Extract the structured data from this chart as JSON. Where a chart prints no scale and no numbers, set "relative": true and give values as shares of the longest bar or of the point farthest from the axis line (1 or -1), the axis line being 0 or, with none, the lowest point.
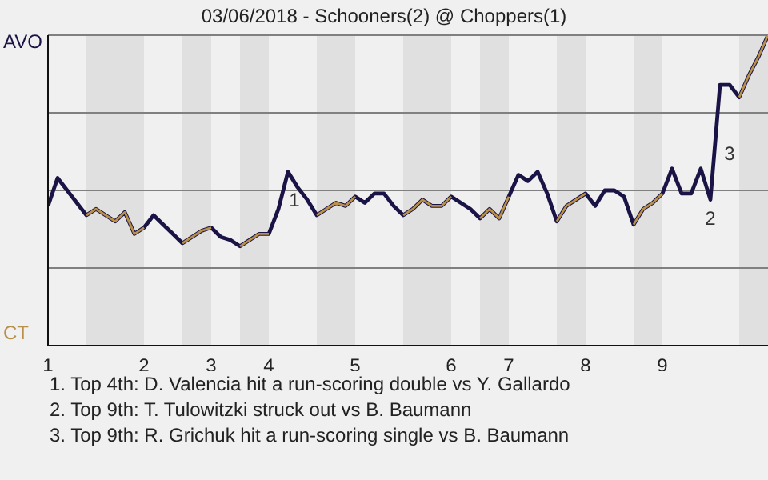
{
  "chart_data": {
    "type": "line",
    "title": "03/06/2018 - Schooners(2) @ Choppers(1)",
    "categories": [
      "1",
      null,
      null,
      null,
      null,
      null,
      null,
      null,
      null,
      null,
      "2",
      null,
      null,
      null,
      null,
      null,
      null,
      "3",
      null,
      null,
      null,
      null,
      null,
      "4",
      null,
      null,
      null,
      null,
      null,
      null,
      null,
      null,
      "5",
      null,
      null,
      null,
      null,
      null,
      null,
      null,
      null,
      null,
      "6",
      null,
      null,
      null,
      null,
      null,
      "7",
      null,
      null,
      null,
      null,
      null,
      null,
      null,
      "8",
      null,
      null,
      null,
      null,
      null,
      null,
      null,
      "9",
      null,
      null,
      null,
      null,
      null,
      null,
      null,
      null,
      null,
      null,
      null
    ],
    "series": [
      {
        "color": "#1a1446",
        "values": [
          0.45,
          0.54,
          0.5,
          0.46,
          0.42,
          0.44,
          0.42,
          0.4,
          0.43,
          0.36,
          0.38,
          0.42,
          0.39,
          0.36,
          0.33,
          0.35,
          0.37,
          0.38,
          0.35,
          0.34,
          0.32,
          0.34,
          0.36,
          0.36,
          0.44,
          0.56,
          0.51,
          0.47,
          0.42,
          0.44,
          0.46,
          0.45,
          0.48,
          0.46,
          0.49,
          0.49,
          0.45,
          0.42,
          0.44,
          0.47,
          0.45,
          0.45,
          0.48,
          0.46,
          0.44,
          0.41,
          0.44,
          0.41,
          0.48,
          0.55,
          0.53,
          0.56,
          0.49,
          0.4,
          0.45,
          0.47,
          0.49,
          0.45,
          0.5,
          0.5,
          0.48,
          0.39,
          0.44,
          0.46,
          0.49,
          0.57,
          0.49,
          0.49,
          0.57,
          0.47,
          0.84,
          0.84,
          0.8,
          0.87,
          0.93,
          1.0
        ]
      },
      {
        "color": "#b8904a",
        "values": [
          null,
          null,
          null,
          null,
          0.42,
          0.44,
          0.42,
          0.4,
          0.43,
          0.36,
          0.38,
          null,
          null,
          null,
          0.33,
          0.35,
          0.37,
          0.38,
          null,
          null,
          0.32,
          0.34,
          0.36,
          0.36,
          null,
          null,
          null,
          null,
          0.42,
          0.44,
          0.46,
          0.45,
          0.48,
          null,
          null,
          null,
          null,
          0.42,
          0.44,
          0.47,
          0.45,
          0.45,
          0.48,
          null,
          null,
          0.41,
          0.44,
          0.41,
          0.48,
          null,
          null,
          null,
          null,
          0.4,
          0.45,
          0.47,
          0.49,
          null,
          null,
          null,
          null,
          0.39,
          0.44,
          0.46,
          0.49,
          null,
          null,
          null,
          null,
          null,
          null,
          null,
          0.8,
          0.87,
          0.93,
          1.0
        ]
      }
    ],
    "relative": true,
    "marker": "none",
    "line_style": "solid",
    "annotations": [
      "AVO",
      "CT",
      "1",
      "2",
      "3",
      "1. Top 4th: D. Valencia hit a run-scoring double vs Y. Gallardo",
      "2. Top 9th: T. Tulowitzki struck out vs B. Baumann",
      "3. Top 9th: R. Grichuk hit a run-scoring single vs B. Baumann"
    ]
  }
}
